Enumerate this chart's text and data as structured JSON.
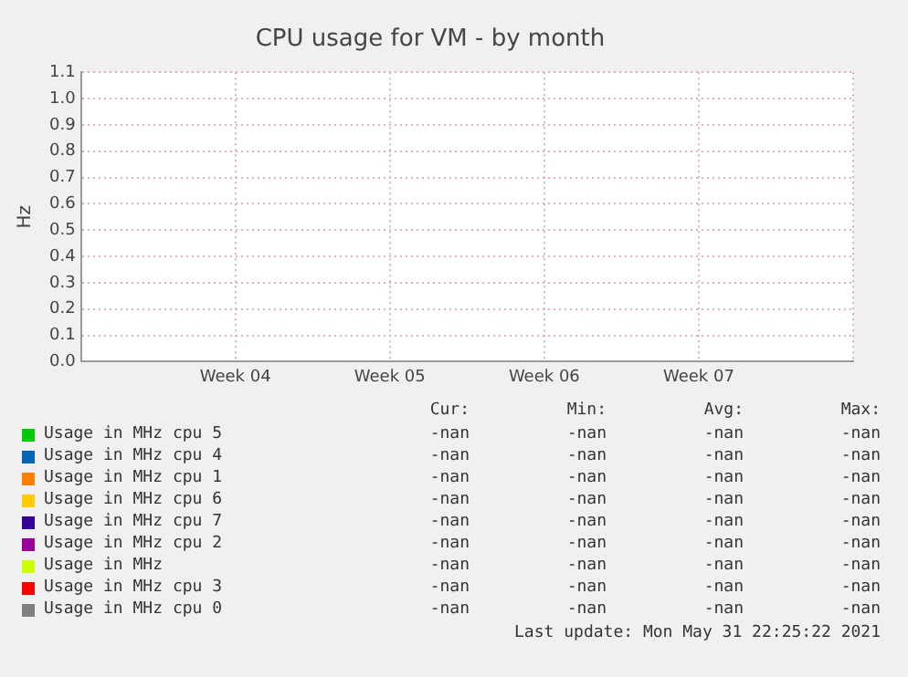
{
  "chart_data": {
    "type": "line",
    "title": "CPU usage for VM - by month",
    "ylabel": "Hz",
    "categories": [
      null,
      "Week 04",
      "Week 05",
      "Week 06",
      "Week 07",
      null
    ],
    "series": [
      {
        "name": "Usage in MHz cpu 5",
        "color": "#00cc00",
        "values": [
          null,
          null,
          null,
          null,
          null,
          null
        ]
      },
      {
        "name": "Usage in MHz cpu 4",
        "color": "#0066b3",
        "values": [
          null,
          null,
          null,
          null,
          null,
          null
        ]
      },
      {
        "name": "Usage in MHz cpu 1",
        "color": "#ff8000",
        "values": [
          null,
          null,
          null,
          null,
          null,
          null
        ]
      },
      {
        "name": "Usage in MHz cpu 6",
        "color": "#ffcc00",
        "values": [
          null,
          null,
          null,
          null,
          null,
          null
        ]
      },
      {
        "name": "Usage in MHz cpu 7",
        "color": "#330099",
        "values": [
          null,
          null,
          null,
          null,
          null,
          null
        ]
      },
      {
        "name": "Usage in MHz cpu 2",
        "color": "#990099",
        "values": [
          null,
          null,
          null,
          null,
          null,
          null
        ]
      },
      {
        "name": "Usage in MHz",
        "color": "#ccff00",
        "values": [
          null,
          null,
          null,
          null,
          null,
          null
        ]
      },
      {
        "name": "Usage in MHz cpu 3",
        "color": "#ff0000",
        "values": [
          null,
          null,
          null,
          null,
          null,
          null
        ]
      },
      {
        "name": "Usage in MHz cpu 0",
        "color": "#808080",
        "values": [
          null,
          null,
          null,
          null,
          null,
          null
        ]
      }
    ],
    "ylim": [
      0,
      1.1
    ],
    "yticks": [
      {
        "value": 0,
        "label": "0.0"
      },
      0.1,
      0.2,
      0.3,
      0.4,
      0.5,
      0.6,
      0.7,
      0.8,
      0.9,
      {
        "value": 1,
        "label": "1.0"
      },
      1.1
    ],
    "grid": true,
    "legend": "bottom",
    "annotations": [
      "Cur:",
      "Min:",
      "Avg:",
      "Max:",
      "-nan",
      "-nan",
      "-nan",
      "-nan",
      "-nan",
      "-nan",
      "-nan",
      "-nan",
      "-nan",
      "-nan",
      "-nan",
      "-nan",
      "-nan",
      "-nan",
      "-nan",
      "-nan",
      "-nan",
      "-nan",
      "-nan",
      "-nan",
      "-nan",
      "-nan",
      "-nan",
      "-nan",
      "-nan",
      "-nan",
      "-nan",
      "-nan",
      "-nan",
      "-nan",
      "-nan",
      "-nan",
      "-nan",
      "-nan",
      "-nan",
      "-nan",
      "Last update: Mon May 31 22:25:22 2021"
    ]
  }
}
